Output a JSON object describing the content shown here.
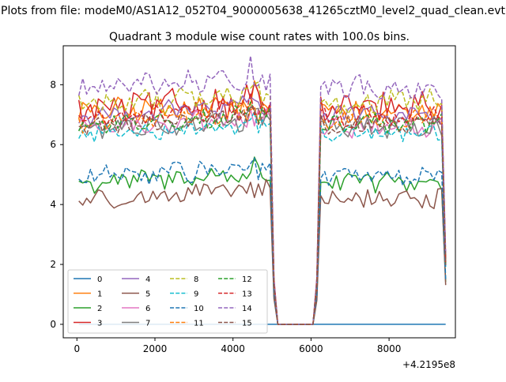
{
  "figure": {
    "suptitle": "Plots from file: modeM0/AS1A12_052T04_9000005638_41265cztM0_level2_quad_clean.evt",
    "offset_label": "+4.2195e8"
  },
  "chart_data": {
    "type": "line",
    "title": "Quadrant 3 module wise count rates with 100.0s bins.",
    "xlabel": "",
    "ylabel": "",
    "xlim": [
      -350,
      9700
    ],
    "ylim": [
      -0.45,
      9.3
    ],
    "xticks": [
      0,
      2000,
      4000,
      6000,
      8000
    ],
    "yticks": [
      0,
      2,
      4,
      6,
      8
    ],
    "grid": false,
    "legend_location": "lower-left",
    "legend_columns": 4,
    "series": [
      {
        "name": "0",
        "color": "#1f77b4",
        "dash": "solid",
        "base": 0,
        "amp": 0,
        "zero": true
      },
      {
        "name": "1",
        "color": "#ff7f0e",
        "dash": "solid",
        "base": 7.05,
        "amp": 0.35
      },
      {
        "name": "2",
        "color": "#2ca02c",
        "dash": "solid",
        "base": 4.7,
        "amp": 0.3
      },
      {
        "name": "3",
        "color": "#d62728",
        "dash": "solid",
        "base": 7.15,
        "amp": 0.45
      },
      {
        "name": "4",
        "color": "#9467bd",
        "dash": "solid",
        "base": 6.95,
        "amp": 0.3
      },
      {
        "name": "5",
        "color": "#8c564b",
        "dash": "solid",
        "base": 4.15,
        "amp": 0.3
      },
      {
        "name": "6",
        "color": "#e377c2",
        "dash": "solid",
        "base": 6.55,
        "amp": 0.3
      },
      {
        "name": "7",
        "color": "#7f7f7f",
        "dash": "solid",
        "base": 6.5,
        "amp": 0.3
      },
      {
        "name": "8",
        "color": "#bcbd22",
        "dash": "dashed",
        "base": 7.35,
        "amp": 0.35
      },
      {
        "name": "9",
        "color": "#17becf",
        "dash": "dashed",
        "base": 6.35,
        "amp": 0.25
      },
      {
        "name": "10",
        "color": "#1f77b4",
        "dash": "dashed",
        "base": 4.9,
        "amp": 0.3
      },
      {
        "name": "11",
        "color": "#ff7f0e",
        "dash": "dashed",
        "base": 6.75,
        "amp": 0.3
      },
      {
        "name": "12",
        "color": "#2ca02c",
        "dash": "dashed",
        "base": 6.65,
        "amp": 0.3
      },
      {
        "name": "13",
        "color": "#d62728",
        "dash": "dashed",
        "base": 6.85,
        "amp": 0.3
      },
      {
        "name": "14",
        "color": "#9467bd",
        "dash": "dashed",
        "base": 7.85,
        "amp": 0.35
      },
      {
        "name": "15",
        "color": "#8c564b",
        "dash": "dashed",
        "base": 6.6,
        "amp": 0.3
      }
    ],
    "time_model": {
      "x_start": 50,
      "x_end": 9450,
      "bin": 100,
      "gap_start": 5050,
      "gap_end": 6150
    }
  }
}
